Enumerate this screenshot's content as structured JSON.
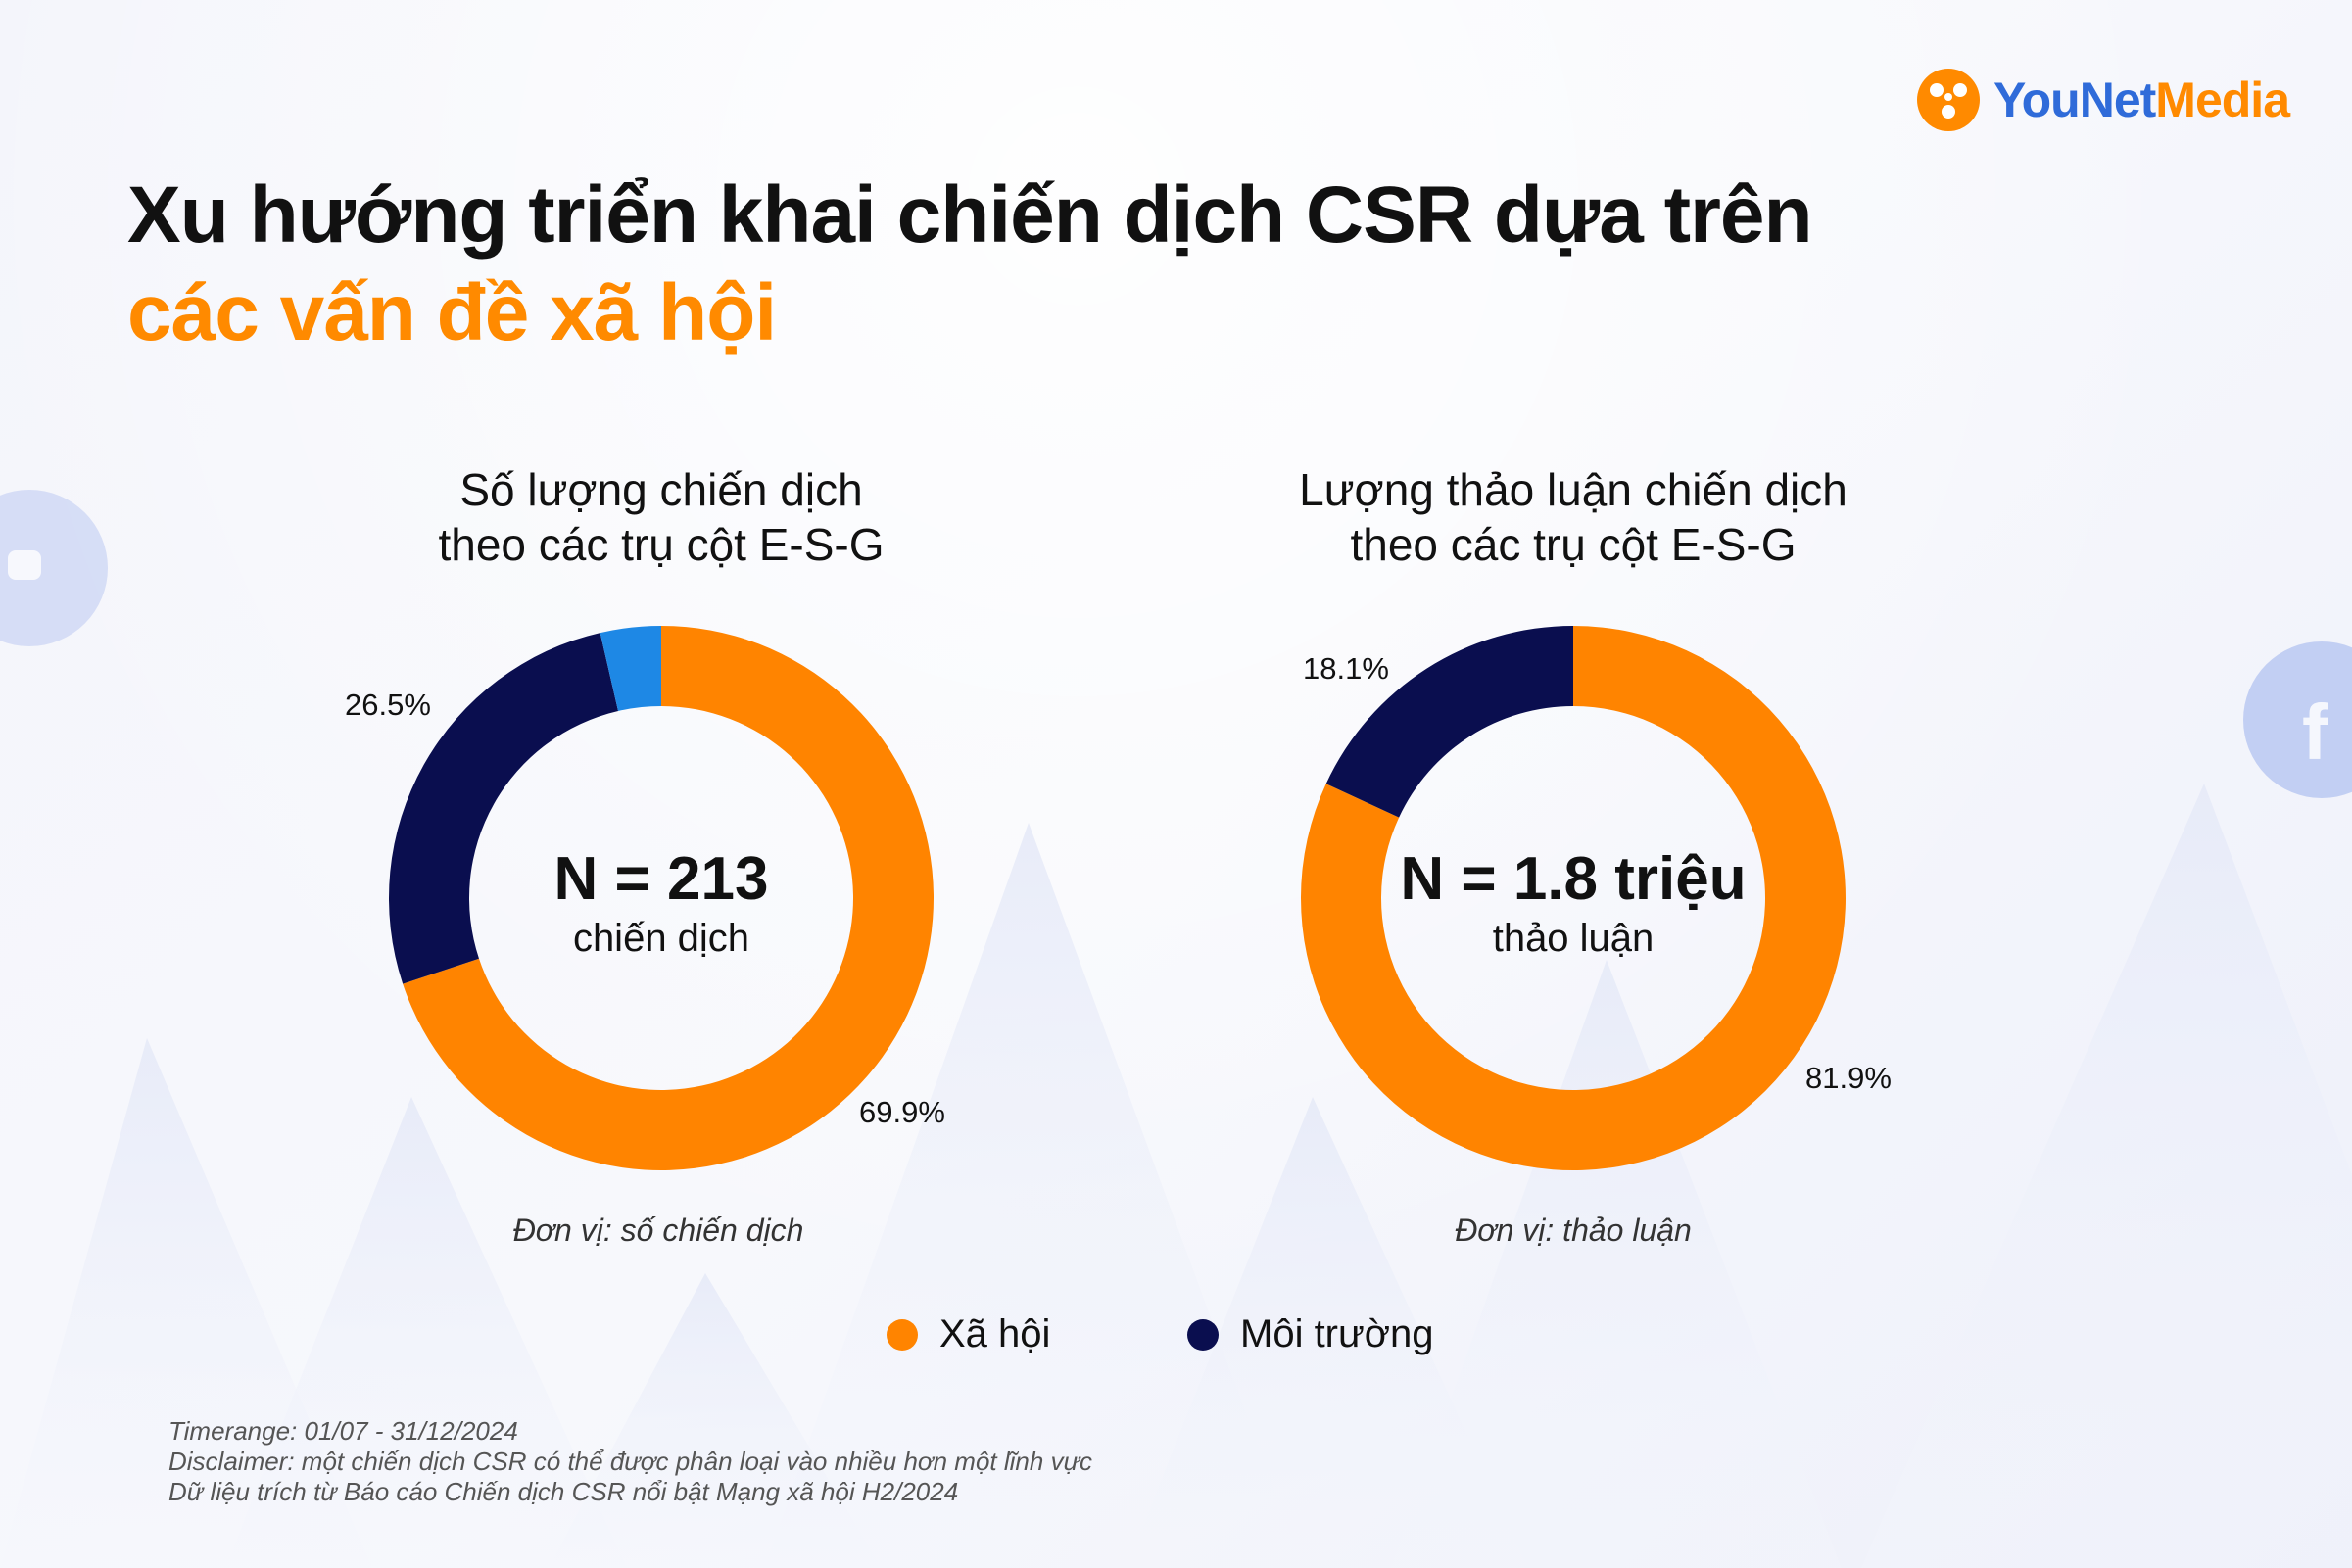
{
  "brand": {
    "name_part1": "YouNet",
    "name_part2": "Media",
    "colors": {
      "orange": "#ff8a00",
      "blue": "#2f6bd9"
    }
  },
  "title": {
    "line1": "Xu hướng triển khai chiến dịch CSR dựa trên",
    "line2": "các vấn đề xã hội"
  },
  "colors": {
    "social": "#ff8400",
    "environment": "#0a0e4f",
    "governance": "#1e88e5"
  },
  "chart_data": [
    {
      "type": "pie",
      "title_line1": "Số lượng chiến dịch",
      "title_line2": "theo các trụ cột E-S-G",
      "center_value": "N = 213",
      "center_unit": "chiến dịch",
      "unit_note": "Đơn vị: số chiến dịch",
      "slices": [
        {
          "name": "Xã hội",
          "value": 69.9,
          "label": "69.9%"
        },
        {
          "name": "Môi trường",
          "value": 26.5,
          "label": "26.5%"
        },
        {
          "name": "",
          "value": 3.6,
          "label": ""
        }
      ]
    },
    {
      "type": "pie",
      "title_line1": "Lượng thảo luận chiến dịch",
      "title_line2": "theo các trụ cột E-S-G",
      "center_value": "N = 1.8 triệu",
      "center_unit": "thảo luận",
      "unit_note": "Đơn vị: thảo luận",
      "slices": [
        {
          "name": "Xã hội",
          "value": 81.9,
          "label": "81.9%"
        },
        {
          "name": "Môi trường",
          "value": 18.1,
          "label": "18.1%"
        }
      ]
    }
  ],
  "legend": [
    {
      "label": "Xã hội",
      "color": "#ff8400"
    },
    {
      "label": "Môi trường",
      "color": "#0a0e4f"
    }
  ],
  "footnotes": [
    "Timerange: 01/07 - 31/12/2024",
    "Disclaimer: một chiến dịch CSR có thể được phân loại vào nhiều hơn một lĩnh vực",
    "Dữ liệu trích từ Báo cáo Chiến dịch CSR nổi bật Mạng xã hội H2/2024"
  ]
}
